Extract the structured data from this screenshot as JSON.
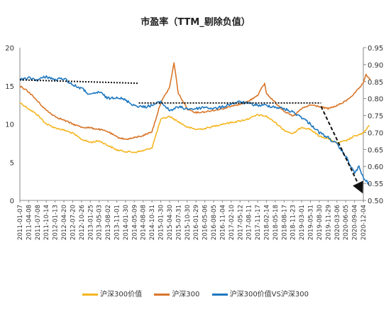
{
  "chart_data": {
    "type": "line",
    "title": "市盈率（TTM_剔除负值）",
    "x_ticks": [
      "2011-01-07",
      "2011-04-08",
      "2011-07-08",
      "2011-10-14",
      "2012-01-13",
      "2012-04-20",
      "2012-07-20",
      "2012-10-26",
      "2013-01-25",
      "2013-05-03",
      "2013-08-02",
      "2013-11-01",
      "2014-01-30",
      "2014-05-09",
      "2014-08-08",
      "2014-10-31",
      "2015-01-30",
      "2015-04-30",
      "2015-07-31",
      "2015-10-30",
      "2016-01-29",
      "2016-05-06",
      "2016-08-05",
      "2016-11-04",
      "2017-02-10",
      "2017-05-12",
      "2017-08-11",
      "2017-11-17",
      "2018-02-14",
      "2018-05-18",
      "2018-08-17",
      "2018-11-23",
      "2019-03-01",
      "2019-05-31",
      "2019-08-30",
      "2019-11-29",
      "2020-03-06",
      "2020-06-05",
      "2020-09-04",
      "2020-12-04"
    ],
    "y_left": {
      "ticks": [
        "0",
        "5",
        "10",
        "15",
        "20"
      ],
      "ylim": [
        0,
        20
      ]
    },
    "y_right": {
      "ticks": [
        "0.50",
        "0.55",
        "0.60",
        "0.65",
        "0.70",
        "0.75",
        "0.80",
        "0.85",
        "0.90",
        "0.95"
      ],
      "ylim": [
        0.5,
        0.95
      ]
    },
    "grid": false,
    "legend_position": "bottom",
    "series": [
      {
        "name": "沪深300价值",
        "axis": "left",
        "color": "#f5b622",
        "points": [
          [
            0,
            12.8
          ],
          [
            1,
            12.0
          ],
          [
            2,
            11.2
          ],
          [
            3,
            10.0
          ],
          [
            4,
            9.5
          ],
          [
            5,
            9.2
          ],
          [
            6,
            8.8
          ],
          [
            7,
            8.0
          ],
          [
            8,
            7.6
          ],
          [
            9,
            7.8
          ],
          [
            10,
            7.2
          ],
          [
            11,
            6.6
          ],
          [
            12,
            6.4
          ],
          [
            13,
            6.3
          ],
          [
            14,
            6.5
          ],
          [
            15,
            6.9
          ],
          [
            16,
            10.6
          ],
          [
            17,
            11.0
          ],
          [
            18,
            10.3
          ],
          [
            19,
            9.6
          ],
          [
            20,
            9.3
          ],
          [
            21,
            9.4
          ],
          [
            22,
            9.7
          ],
          [
            23,
            10.0
          ],
          [
            24,
            10.2
          ],
          [
            25,
            10.4
          ],
          [
            26,
            10.7
          ],
          [
            27,
            11.2
          ],
          [
            28,
            11.0
          ],
          [
            29,
            10.2
          ],
          [
            30,
            9.2
          ],
          [
            31,
            8.7
          ],
          [
            32,
            9.6
          ],
          [
            33,
            9.3
          ],
          [
            34,
            8.4
          ],
          [
            35,
            8.1
          ],
          [
            36,
            7.5
          ],
          [
            37,
            7.8
          ],
          [
            38,
            8.4
          ],
          [
            39,
            8.8
          ],
          [
            39.7,
            9.8
          ]
        ]
      },
      {
        "name": "沪深300",
        "axis": "left",
        "color": "#d9762a",
        "points": [
          [
            0,
            15.0
          ],
          [
            1,
            14.2
          ],
          [
            2,
            13.0
          ],
          [
            3,
            11.8
          ],
          [
            4,
            11.0
          ],
          [
            5,
            10.5
          ],
          [
            6,
            10.0
          ],
          [
            7,
            9.6
          ],
          [
            8,
            9.5
          ],
          [
            9,
            9.3
          ],
          [
            10,
            9.0
          ],
          [
            11,
            8.3
          ],
          [
            12,
            8.0
          ],
          [
            13,
            8.2
          ],
          [
            14,
            8.5
          ],
          [
            15,
            9.0
          ],
          [
            16,
            12.8
          ],
          [
            17,
            14.8
          ],
          [
            17.5,
            18.0
          ],
          [
            18,
            14.0
          ],
          [
            19,
            12.0
          ],
          [
            20,
            11.5
          ],
          [
            21,
            11.6
          ],
          [
            22,
            11.8
          ],
          [
            23,
            12.0
          ],
          [
            24,
            12.3
          ],
          [
            25,
            12.6
          ],
          [
            26,
            13.0
          ],
          [
            27,
            13.8
          ],
          [
            27.8,
            15.3
          ],
          [
            28,
            14.0
          ],
          [
            29,
            12.8
          ],
          [
            30,
            11.7
          ],
          [
            31,
            11.0
          ],
          [
            32,
            12.0
          ],
          [
            33,
            12.5
          ],
          [
            34,
            12.3
          ],
          [
            35,
            12.0
          ],
          [
            36,
            12.4
          ],
          [
            37,
            13.0
          ],
          [
            38,
            14.0
          ],
          [
            39,
            15.3
          ],
          [
            39.3,
            16.5
          ],
          [
            39.8,
            15.8
          ]
        ]
      },
      {
        "name": "沪深300价值VS沪深300",
        "axis": "right",
        "color": "#1f78c0",
        "points": [
          [
            0,
            0.855
          ],
          [
            1,
            0.86
          ],
          [
            2,
            0.855
          ],
          [
            3,
            0.865
          ],
          [
            4,
            0.855
          ],
          [
            5,
            0.86
          ],
          [
            6,
            0.84
          ],
          [
            7,
            0.83
          ],
          [
            8,
            0.81
          ],
          [
            9,
            0.82
          ],
          [
            10,
            0.8
          ],
          [
            11,
            0.805
          ],
          [
            12,
            0.795
          ],
          [
            13,
            0.78
          ],
          [
            14,
            0.775
          ],
          [
            15,
            0.78
          ],
          [
            16,
            0.79
          ],
          [
            17,
            0.765
          ],
          [
            18,
            0.775
          ],
          [
            19,
            0.77
          ],
          [
            20,
            0.77
          ],
          [
            21,
            0.775
          ],
          [
            22,
            0.77
          ],
          [
            23,
            0.775
          ],
          [
            24,
            0.785
          ],
          [
            25,
            0.79
          ],
          [
            26,
            0.785
          ],
          [
            27,
            0.78
          ],
          [
            28,
            0.78
          ],
          [
            29,
            0.775
          ],
          [
            30,
            0.77
          ],
          [
            31,
            0.76
          ],
          [
            32,
            0.745
          ],
          [
            33,
            0.725
          ],
          [
            34,
            0.7
          ],
          [
            35,
            0.685
          ],
          [
            36,
            0.665
          ],
          [
            37,
            0.63
          ],
          [
            38,
            0.58
          ],
          [
            38.5,
            0.6
          ],
          [
            39,
            0.565
          ],
          [
            39.7,
            0.548
          ]
        ]
      }
    ],
    "trend_lines": [
      {
        "axis": "right",
        "from": [
          0,
          0.855
        ],
        "to": [
          13.5,
          0.845
        ]
      },
      {
        "axis": "right",
        "from": [
          13.5,
          0.787
        ],
        "to": [
          34.2,
          0.787
        ]
      },
      {
        "axis": "right",
        "from": [
          34.2,
          0.777
        ],
        "to": [
          38.8,
          0.528
        ]
      }
    ]
  }
}
